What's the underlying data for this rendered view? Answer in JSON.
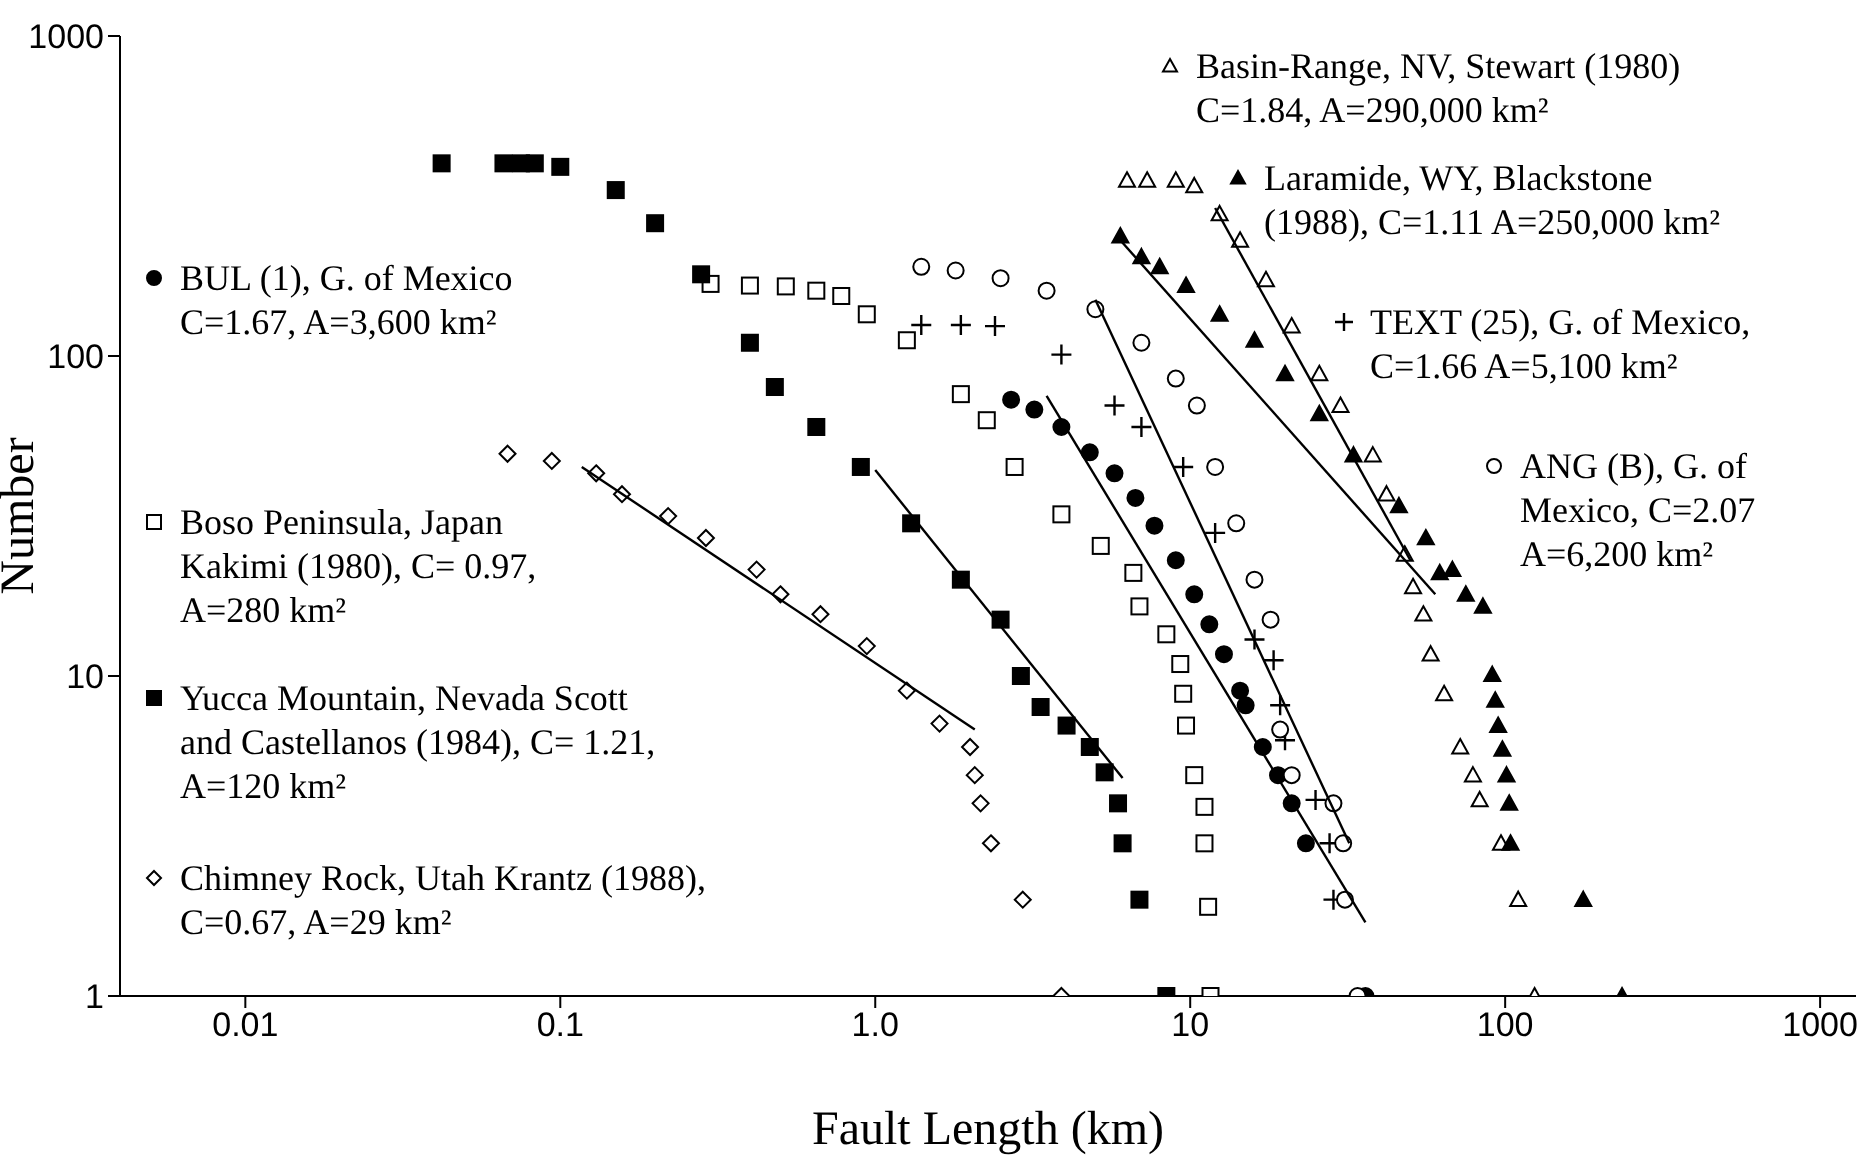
{
  "chart_data": {
    "type": "scatter",
    "xlabel": "Fault Length (km)",
    "ylabel": "Number",
    "log": "xy",
    "xlim": [
      0.004,
      1300
    ],
    "ylim": [
      1,
      1000
    ],
    "xticks": [
      0.01,
      0.1,
      {
        "value": 1,
        "label": "1.0"
      },
      10,
      100,
      1000
    ],
    "yticks": [
      1,
      10,
      100,
      1000
    ],
    "legend": "left",
    "series": [
      {
        "name": "BUL (1), G. of Mexico C=1.67, A=3,600 km²",
        "marker": "circle",
        "color": "#000000",
        "x": [
          2.7,
          3.2,
          3.9,
          4.8,
          5.75,
          6.7,
          7.7,
          9,
          10.3,
          11.5,
          12.8,
          14.4,
          15,
          17,
          19,
          21,
          23.3,
          36
        ],
        "values": [
          73,
          68,
          60,
          50,
          43,
          36,
          29.5,
          23,
          18,
          14.5,
          11.7,
          9,
          8.1,
          6,
          4.9,
          4,
          3,
          1
        ]
      },
      {
        "name": "Boso Peninsula, Japan Kakimi (1980), C= 0.97, A=280 km²",
        "marker": "square",
        "color": "#ffffff",
        "x": [
          0.3,
          0.4,
          0.52,
          0.65,
          0.78,
          0.94,
          1.26,
          1.87,
          2.26,
          2.77,
          3.9,
          5.2,
          6.6,
          6.9,
          8.4,
          9.3,
          9.5,
          9.7,
          10.3,
          11.1,
          11.1,
          11.4,
          11.6
        ],
        "values": [
          168,
          166,
          165,
          160,
          154,
          135,
          112,
          76,
          63,
          45,
          32,
          25.5,
          21,
          16.5,
          13.5,
          10.9,
          8.8,
          7,
          4.9,
          3.9,
          3,
          1.9,
          1
        ]
      },
      {
        "name": "Yucca Mountain, Nevada Scott and Castellanos (1984), C= 1.21, A=120 km²",
        "marker": "square",
        "color": "#000000",
        "x": [
          0.042,
          0.066,
          0.075,
          0.083,
          0.1,
          0.15,
          0.2,
          0.28,
          0.4,
          0.48,
          0.65,
          0.9,
          1.3,
          1.87,
          2.5,
          2.9,
          3.35,
          4.05,
          4.8,
          5.35,
          5.9,
          6.1,
          6.9,
          8.4
        ],
        "values": [
          400,
          400,
          400,
          400,
          390,
          330,
          260,
          180,
          110,
          80,
          60,
          45,
          30,
          20,
          15,
          10,
          8,
          7,
          6,
          5,
          4,
          3,
          2,
          1
        ]
      },
      {
        "name": "Chimney Rock, Utah Krantz (1988), C=0.67, A=29 km²",
        "marker": "diamond",
        "color": "#ffffff",
        "x": [
          0.068,
          0.094,
          0.13,
          0.157,
          0.22,
          0.29,
          0.42,
          0.5,
          0.67,
          0.94,
          1.26,
          1.6,
          2,
          2.07,
          2.16,
          2.33,
          2.94,
          3.9
        ],
        "values": [
          49.5,
          47,
          43,
          37,
          31.6,
          27,
          21.5,
          18,
          15.6,
          12.4,
          9,
          7.1,
          6,
          4.9,
          4,
          3,
          2,
          1
        ]
      },
      {
        "name": "Basin-Range, NV, Stewart (1980) C=1.84, A=290,000 km²",
        "marker": "triangle",
        "color": "#ffffff",
        "x": [
          6.3,
          7.3,
          9,
          10.3,
          12.4,
          14.4,
          17.4,
          21,
          25.7,
          30,
          38,
          42,
          48,
          51,
          55,
          58,
          64,
          72,
          79,
          83,
          97,
          110,
          124
        ],
        "values": [
          354,
          354,
          354,
          340,
          278,
          230,
          173,
          124,
          88,
          70,
          49,
          37,
          24,
          19,
          15.6,
          11.7,
          8.8,
          6,
          4.9,
          4.1,
          3,
          2,
          1
        ]
      },
      {
        "name": "Laramide, WY, Blackstone (1988), C=1.11 A=250,000 km²",
        "marker": "triangle",
        "color": "#000000",
        "x": [
          6,
          7,
          8,
          9.7,
          12.4,
          16,
          20,
          25.7,
          33,
          46,
          56,
          62,
          68,
          75,
          85,
          91,
          93,
          95,
          98,
          101,
          103,
          104,
          177,
          235
        ],
        "values": [
          237,
          204,
          190,
          166,
          135,
          112,
          88,
          66,
          49,
          34,
          27,
          21,
          21.5,
          18,
          16.5,
          10.1,
          8.4,
          7,
          5.9,
          4.9,
          4,
          3,
          2,
          1
        ]
      },
      {
        "name": "TEXT (25), G. of Mexico, C=1.66 A=5,100 km²",
        "marker": "cross",
        "color": "#000000",
        "x": [
          1.4,
          1.87,
          2.4,
          3.9,
          5.75,
          7,
          9.5,
          12,
          16,
          18.4,
          19.3,
          20,
          25,
          27.7,
          28.5
        ],
        "values": [
          125,
          125,
          124,
          101,
          70,
          60,
          45,
          28,
          13,
          11.2,
          8.1,
          6.3,
          4.1,
          3,
          2
        ]
      },
      {
        "name": "ANG (B), G. of Mexico, C=2.07 A=6,200 km²",
        "marker": "circle",
        "color": "#ffffff",
        "x": [
          1.4,
          1.8,
          2.5,
          3.5,
          5,
          7,
          9,
          10.5,
          12,
          14,
          16,
          18,
          19.3,
          21,
          28.5,
          30.6,
          31,
          34
        ],
        "values": [
          190,
          185,
          175,
          160,
          140,
          110,
          85,
          70,
          45,
          30,
          20,
          15,
          6.8,
          4.9,
          4,
          3,
          2,
          1
        ]
      },
      {
        "type": "line",
        "color": "#000000",
        "x": [
          0.117,
          2.07
        ],
        "values": [
          45,
          6.8
        ]
      },
      {
        "type": "line",
        "color": "#000000",
        "x": [
          1,
          6.1
        ],
        "values": [
          44,
          4.8
        ]
      },
      {
        "type": "line",
        "color": "#000000",
        "x": [
          3.5,
          36
        ],
        "values": [
          75,
          1.7
        ]
      },
      {
        "type": "line",
        "color": "#000000",
        "x": [
          5,
          32
        ],
        "values": [
          150,
          3
        ]
      },
      {
        "type": "line",
        "color": "#000000",
        "x": [
          6,
          60
        ],
        "values": [
          230,
          18
        ]
      },
      {
        "type": "line",
        "color": "#000000",
        "x": [
          12,
          50
        ],
        "values": [
          290,
          23
        ]
      }
    ]
  }
}
